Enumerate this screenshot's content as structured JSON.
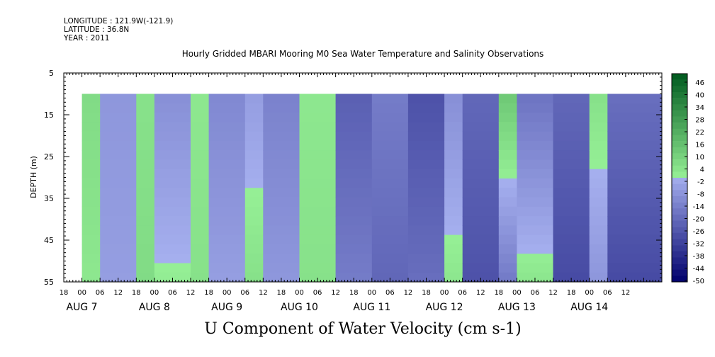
{
  "meta": {
    "longitude": "LONGITUDE : 121.9W(-121.9)",
    "latitude": "LATITUDE : 36.8N",
    "year": "YEAR : 2011"
  },
  "plot_title": "Hourly Gridded MBARI Mooring M0 Sea Water Temperature and Salinity Observations",
  "footer_title": "U Component of Water Velocity (cm s-1)",
  "chart_data": {
    "type": "heatmap",
    "title": "Hourly Gridded MBARI Mooring M0 Sea Water Temperature and Salinity Observations",
    "xlabel": "",
    "ylabel": "DEPTH (m)",
    "colorbar_label": "U Component of Water Velocity (cm s-1)",
    "ylim": [
      55,
      5
    ],
    "y_ticks": [
      5,
      15,
      25,
      35,
      45,
      55
    ],
    "data_depth_range": [
      10,
      55
    ],
    "x_start_hour": "AUG 6 18:00",
    "x_end_hour": "AUG 14 23:00",
    "x_hour_labels": [
      "18",
      "00",
      "06",
      "12",
      "18",
      "00",
      "06",
      "12",
      "18",
      "00",
      "06",
      "12",
      "18",
      "00",
      "06",
      "12",
      "18",
      "00",
      "06",
      "12",
      "18",
      "00",
      "06",
      "12",
      "18",
      "00",
      "06",
      "12",
      "18",
      "00",
      "06",
      "12"
    ],
    "x_date_labels": [
      {
        "label": "AUG  7",
        "day": 7
      },
      {
        "label": "AUG  8",
        "day": 8
      },
      {
        "label": "AUG  9",
        "day": 9
      },
      {
        "label": "AUG 10",
        "day": 10
      },
      {
        "label": "AUG 11",
        "day": 11
      },
      {
        "label": "AUG 12",
        "day": 12
      },
      {
        "label": "AUG 13",
        "day": 13
      },
      {
        "label": "AUG 14",
        "day": 14
      }
    ],
    "colorbar_levels": [
      "46",
      "40",
      "34",
      "28",
      "22",
      "16",
      "10",
      "4",
      "-2",
      "-8",
      "-14",
      "-20",
      "-26",
      "-32",
      "-38",
      "-44",
      "-50"
    ],
    "colorbar_min": -50,
    "colorbar_max": 52,
    "column_values_approx": [
      {
        "day_start": "AUG 7 00:00",
        "hours": 6,
        "surface": 8,
        "bottom": 4
      },
      {
        "day_start": "AUG 7 06:00",
        "hours": 12,
        "surface": -6,
        "bottom": -4
      },
      {
        "day_start": "AUG 7 18:00",
        "hours": 6,
        "surface": 6,
        "bottom": 8
      },
      {
        "day_start": "AUG 8 00:00",
        "hours": 12,
        "surface": -8,
        "bottom": 2
      },
      {
        "day_start": "AUG 8 12:00",
        "hours": 6,
        "surface": 4,
        "bottom": 6
      },
      {
        "day_start": "AUG 8 18:00",
        "hours": 12,
        "surface": -10,
        "bottom": -4
      },
      {
        "day_start": "AUG 9 06:00",
        "hours": 6,
        "surface": -4,
        "bottom": 6
      },
      {
        "day_start": "AUG 9 12:00",
        "hours": 12,
        "surface": -12,
        "bottom": -6
      },
      {
        "day_start": "AUG 10 00:00",
        "hours": 12,
        "surface": 4,
        "bottom": 6
      },
      {
        "day_start": "AUG 10 12:00",
        "hours": 12,
        "surface": -22,
        "bottom": -14
      },
      {
        "day_start": "AUG 11 00:00",
        "hours": 12,
        "surface": -14,
        "bottom": -20
      },
      {
        "day_start": "AUG 11 12:00",
        "hours": 12,
        "surface": -26,
        "bottom": -18
      },
      {
        "day_start": "AUG 12 00:00",
        "hours": 6,
        "surface": -8,
        "bottom": 4
      },
      {
        "day_start": "AUG 12 06:00",
        "hours": 12,
        "surface": -20,
        "bottom": -26
      },
      {
        "day_start": "AUG 12 18:00",
        "hours": 6,
        "surface": 14,
        "bottom": -14
      },
      {
        "day_start": "AUG 13 00:00",
        "hours": 12,
        "surface": -16,
        "bottom": 4
      },
      {
        "day_start": "AUG 13 12:00",
        "hours": 12,
        "surface": -20,
        "bottom": -28
      },
      {
        "day_start": "AUG 14 00:00",
        "hours": 6,
        "surface": 6,
        "bottom": -6
      },
      {
        "day_start": "AUG 14 06:00",
        "hours": 18,
        "surface": -18,
        "bottom": -28
      }
    ]
  }
}
